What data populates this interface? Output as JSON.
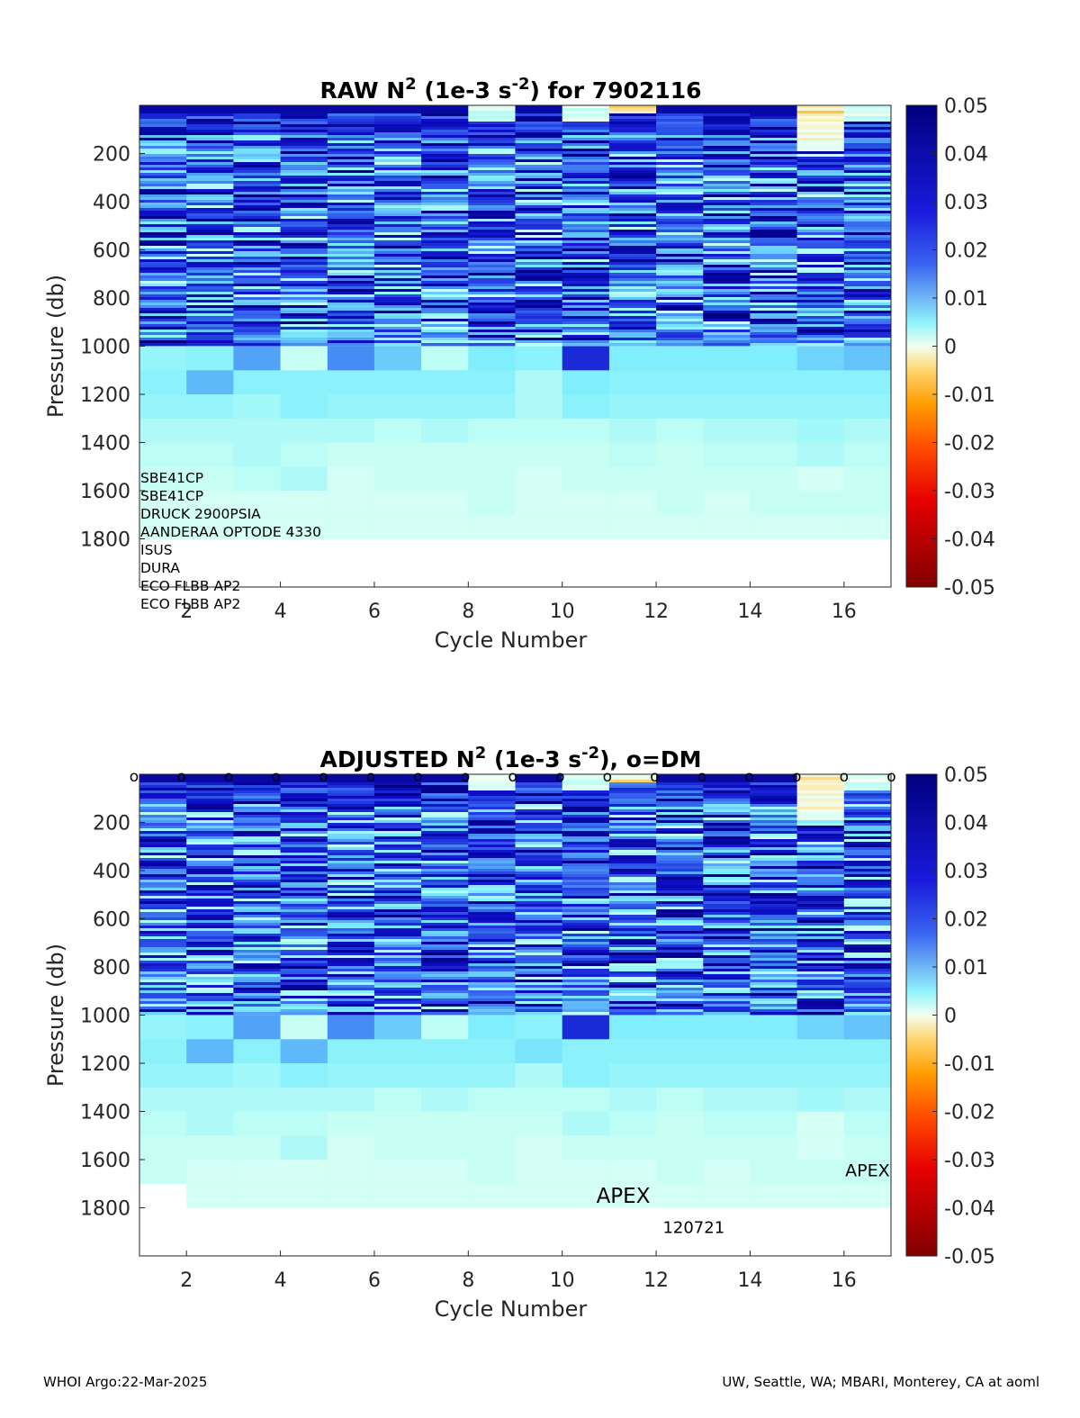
{
  "chart_data": [
    {
      "type": "heatmap",
      "title": "RAW N",
      "title_sup": "2",
      "title_mid": " (1e-3 s",
      "title_sup2": "-2",
      "title_end": ") for 7902116",
      "xlabel": "Cycle Number",
      "ylabel": "Pressure (db)",
      "x_ticks": [
        2,
        4,
        6,
        8,
        10,
        12,
        14,
        16
      ],
      "y_ticks": [
        200,
        400,
        600,
        800,
        1000,
        1200,
        1400,
        1600,
        1800
      ],
      "xlim": [
        1,
        17
      ],
      "ylim": [
        0,
        2000
      ],
      "y_reversed": true,
      "colorbar": {
        "ticks": [
          "0.05",
          "0.04",
          "0.03",
          "0.02",
          "0.01",
          "0",
          "-0.01",
          "-0.02",
          "-0.03",
          "-0.04",
          "-0.05"
        ],
        "range": [
          -0.05,
          0.05
        ]
      },
      "cycles": [
        1,
        2,
        3,
        4,
        5,
        6,
        7,
        8,
        9,
        10,
        11,
        12,
        13,
        14,
        15,
        16
      ],
      "deep_values": [
        [
          0.008,
          0.009,
          0.018,
          0.004,
          0.02,
          0.014,
          0.005,
          0.01,
          0.009,
          0.035,
          0.01,
          0.01,
          0.01,
          0.01,
          0.013,
          0.015
        ],
        [
          0.009,
          0.016,
          0.009,
          0.009,
          0.009,
          0.009,
          0.009,
          0.009,
          0.006,
          0.01,
          0.009,
          0.009,
          0.009,
          0.009,
          0.009,
          0.009
        ],
        [
          0.008,
          0.008,
          0.007,
          0.009,
          0.008,
          0.008,
          0.008,
          0.008,
          0.006,
          0.009,
          0.008,
          0.008,
          0.008,
          0.008,
          0.008,
          0.008
        ],
        [
          0.006,
          0.006,
          0.006,
          0.006,
          0.006,
          0.005,
          0.006,
          0.005,
          0.005,
          0.005,
          0.006,
          0.005,
          0.006,
          0.006,
          0.007,
          0.006
        ],
        [
          0.005,
          0.005,
          0.006,
          0.005,
          0.004,
          0.004,
          0.004,
          0.004,
          0.004,
          0.004,
          0.005,
          0.004,
          0.005,
          0.005,
          0.006,
          0.005
        ],
        [
          0.004,
          0.004,
          0.005,
          0.006,
          0.003,
          0.004,
          0.004,
          0.004,
          0.003,
          0.004,
          0.004,
          0.004,
          0.004,
          0.004,
          0.003,
          0.004
        ],
        [
          0.003,
          0.003,
          0.003,
          0.003,
          0.003,
          0.003,
          0.003,
          0.004,
          0.003,
          0.003,
          0.003,
          0.004,
          0.003,
          0.004,
          0.004,
          0.004
        ],
        [
          0.003,
          0.003,
          0.003,
          0.003,
          0.003,
          0.003,
          0.003,
          0.003,
          0.003,
          0.003,
          0.003,
          0.003,
          0.003,
          0.003,
          0.003,
          0.003
        ]
      ],
      "sensors": [
        "SBE41CP",
        "SBE41CP",
        "DRUCK 2900PSIA",
        "AANDERAA OPTODE 4330",
        "ISUS",
        "DURA",
        "ECO FLBB AP2",
        "ECO FLBB AP2"
      ]
    },
    {
      "type": "heatmap",
      "title": "ADJUSTED N",
      "title_sup": "2",
      "title_mid": " (1e-3 s",
      "title_sup2": "-2",
      "title_end": "), o=DM",
      "xlabel": "Cycle Number",
      "ylabel": "Pressure (db)",
      "x_ticks": [
        2,
        4,
        6,
        8,
        10,
        12,
        14,
        16
      ],
      "y_ticks": [
        200,
        400,
        600,
        800,
        1000,
        1200,
        1400,
        1600,
        1800
      ],
      "xlim": [
        1,
        17
      ],
      "ylim": [
        0,
        2000
      ],
      "y_reversed": true,
      "colorbar": {
        "ticks": [
          "0.05",
          "0.04",
          "0.03",
          "0.02",
          "0.01",
          "0",
          "-0.01",
          "-0.02",
          "-0.03",
          "-0.04",
          "-0.05"
        ],
        "range": [
          -0.05,
          0.05
        ]
      },
      "cycles": [
        1,
        2,
        3,
        4,
        5,
        6,
        7,
        8,
        9,
        10,
        11,
        12,
        13,
        14,
        15,
        16
      ],
      "dm_marker": "o",
      "dm_cycles": [
        1,
        2,
        3,
        4,
        5,
        6,
        7,
        8,
        9,
        10,
        11,
        12,
        13,
        14,
        15,
        16,
        17
      ],
      "deep_values": [
        [
          0.008,
          0.009,
          0.018,
          0.004,
          0.02,
          0.014,
          0.005,
          0.01,
          0.009,
          0.035,
          0.01,
          0.01,
          0.01,
          0.01,
          0.013,
          0.015
        ],
        [
          0.009,
          0.016,
          0.009,
          0.016,
          0.009,
          0.009,
          0.009,
          0.009,
          0.011,
          0.009,
          0.009,
          0.009,
          0.009,
          0.009,
          0.009,
          0.009
        ],
        [
          0.008,
          0.008,
          0.007,
          0.009,
          0.008,
          0.008,
          0.008,
          0.008,
          0.006,
          0.009,
          0.008,
          0.008,
          0.008,
          0.008,
          0.008,
          0.008
        ],
        [
          0.006,
          0.006,
          0.006,
          0.006,
          0.006,
          0.005,
          0.006,
          0.005,
          0.005,
          0.005,
          0.006,
          0.005,
          0.006,
          0.006,
          0.007,
          0.006
        ],
        [
          0.005,
          0.006,
          0.005,
          0.005,
          0.004,
          0.004,
          0.004,
          0.004,
          0.004,
          0.006,
          0.005,
          0.004,
          0.005,
          0.005,
          0.003,
          0.005
        ],
        [
          0.004,
          0.004,
          0.004,
          0.006,
          0.003,
          0.004,
          0.004,
          0.004,
          0.003,
          0.004,
          0.004,
          0.004,
          0.004,
          0.004,
          0.003,
          0.004
        ],
        [
          0.004,
          0.003,
          0.003,
          0.003,
          0.003,
          0.003,
          0.003,
          0.004,
          0.003,
          0.003,
          0.003,
          0.004,
          0.003,
          0.004,
          0.004,
          0.004
        ],
        [
          null,
          0.003,
          0.003,
          0.003,
          0.003,
          0.003,
          0.003,
          0.003,
          0.003,
          0.003,
          0.003,
          0.003,
          0.003,
          0.003,
          0.003,
          0.003
        ]
      ],
      "annotations": [
        {
          "text": "APEX",
          "cycle": 11.3,
          "pressure": 1780
        },
        {
          "text": "120721",
          "cycle": 12.8,
          "pressure": 1905
        },
        {
          "text": "APEX",
          "cycle": 16.5,
          "pressure": 1670
        }
      ]
    }
  ],
  "footer": {
    "left": "WHOI Argo:22-Mar-2025",
    "right": "UW, Seattle, WA; MBARI, Monterey, CA at aoml"
  }
}
